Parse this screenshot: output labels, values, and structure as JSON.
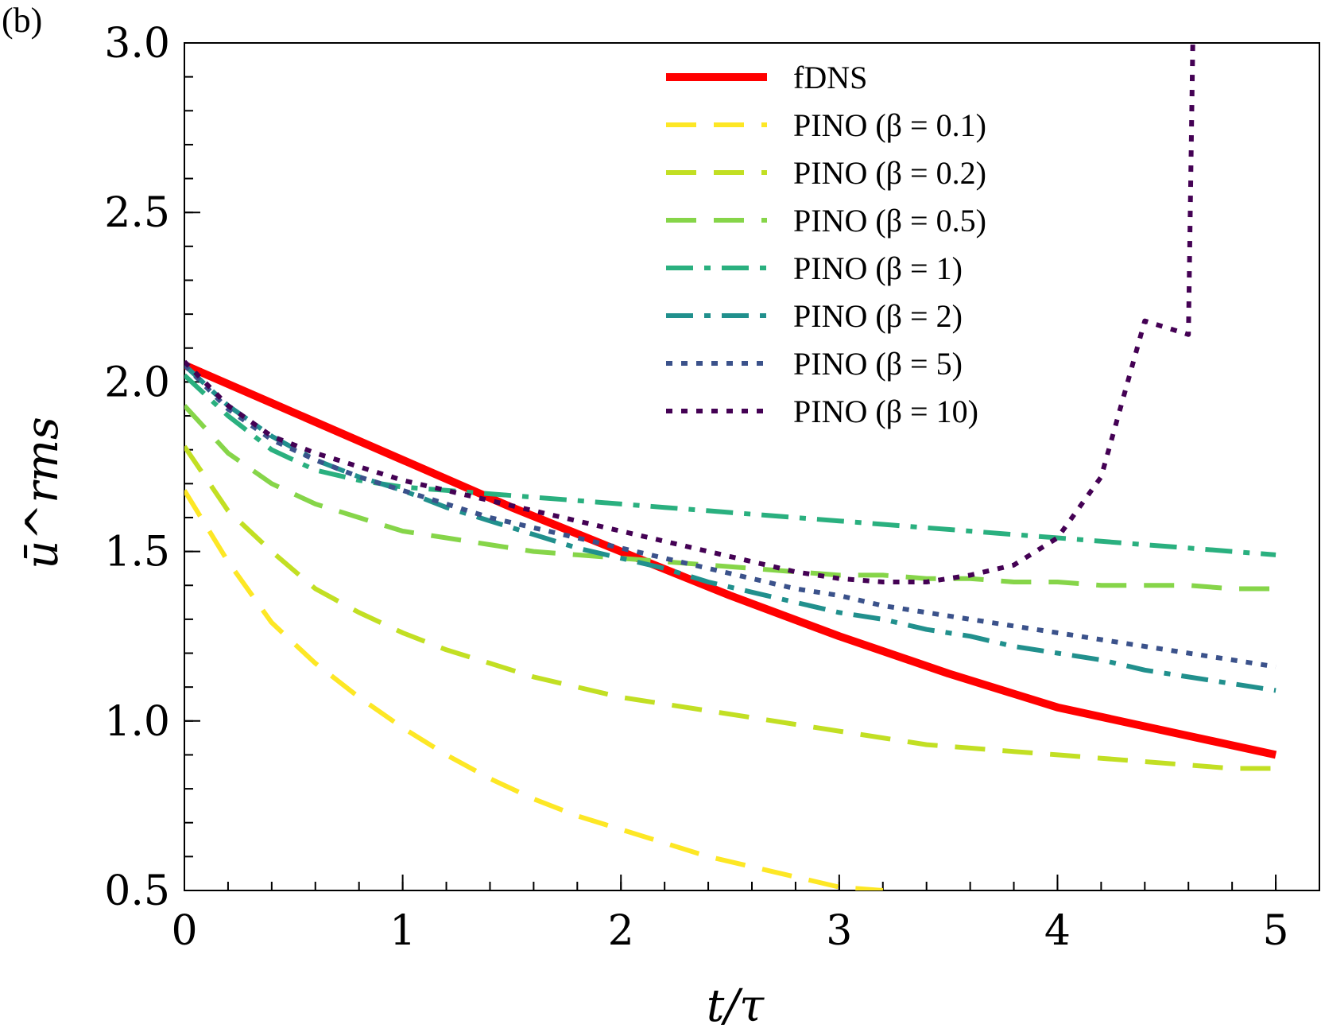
{
  "panel_label": "(b)",
  "chart_data": {
    "type": "line",
    "xlabel": "t/τ",
    "ylabel": "ū^rms",
    "xlim": [
      0,
      5.2
    ],
    "ylim": [
      0.5,
      3.0
    ],
    "xticks": [
      0,
      1,
      2,
      3,
      4,
      5
    ],
    "xtick_labels": [
      "0",
      "1",
      "2",
      "3",
      "4",
      "5"
    ],
    "yticks": [
      0.5,
      1.0,
      1.5,
      2.0,
      2.5,
      3.0
    ],
    "ytick_labels": [
      "0.5",
      "1.0",
      "1.5",
      "2.0",
      "2.5",
      "3.0"
    ],
    "grid": false,
    "legend_position": "top-right",
    "series": [
      {
        "name": "fDNS",
        "color": "#ff0000",
        "style": "solid",
        "x": [
          0,
          0.5,
          1.0,
          1.5,
          2.0,
          2.5,
          3.0,
          3.5,
          4.0,
          4.5,
          5.0
        ],
        "y": [
          2.05,
          1.91,
          1.77,
          1.63,
          1.5,
          1.37,
          1.25,
          1.14,
          1.04,
          0.97,
          0.9
        ]
      },
      {
        "name": "PINO (β = 0.1)",
        "color": "#fde725",
        "style": "dashed",
        "x": [
          0,
          0.2,
          0.4,
          0.6,
          0.8,
          1.0,
          1.2,
          1.4,
          1.6,
          1.8,
          2.0,
          2.2,
          2.4,
          2.6,
          2.8,
          3.0,
          3.2
        ],
        "y": [
          1.68,
          1.47,
          1.29,
          1.17,
          1.07,
          0.98,
          0.9,
          0.83,
          0.77,
          0.72,
          0.68,
          0.64,
          0.6,
          0.57,
          0.54,
          0.51,
          0.5
        ]
      },
      {
        "name": "PINO (β = 0.2)",
        "color": "#c2df23",
        "style": "dashed",
        "x": [
          0,
          0.2,
          0.4,
          0.6,
          0.8,
          1.0,
          1.2,
          1.4,
          1.6,
          1.8,
          2.0,
          2.2,
          2.4,
          2.6,
          2.8,
          3.0,
          3.2,
          3.4,
          3.6,
          3.8,
          4.0,
          4.2,
          4.4,
          4.6,
          4.8,
          5.0
        ],
        "y": [
          1.81,
          1.62,
          1.5,
          1.39,
          1.32,
          1.26,
          1.21,
          1.17,
          1.13,
          1.1,
          1.07,
          1.05,
          1.03,
          1.01,
          0.99,
          0.97,
          0.95,
          0.93,
          0.92,
          0.91,
          0.9,
          0.89,
          0.88,
          0.87,
          0.86,
          0.86
        ]
      },
      {
        "name": "PINO (β = 0.5)",
        "color": "#86d549",
        "style": "dashed",
        "x": [
          0,
          0.2,
          0.4,
          0.6,
          0.8,
          1.0,
          1.2,
          1.4,
          1.6,
          1.8,
          2.0,
          2.2,
          2.4,
          2.6,
          2.8,
          3.0,
          3.2,
          3.4,
          3.6,
          3.8,
          4.0,
          4.2,
          4.4,
          4.6,
          4.8,
          5.0
        ],
        "y": [
          1.93,
          1.79,
          1.7,
          1.64,
          1.6,
          1.56,
          1.54,
          1.52,
          1.5,
          1.49,
          1.48,
          1.47,
          1.46,
          1.45,
          1.44,
          1.43,
          1.43,
          1.42,
          1.42,
          1.41,
          1.41,
          1.4,
          1.4,
          1.4,
          1.39,
          1.39
        ]
      },
      {
        "name": "PINO (β = 1)",
        "color": "#2ab07f",
        "style": "dashdot",
        "x": [
          0,
          0.2,
          0.4,
          0.6,
          0.8,
          1.0,
          1.2,
          1.4,
          1.6,
          1.8,
          2.0,
          2.2,
          2.4,
          2.6,
          2.8,
          3.0,
          3.2,
          3.4,
          3.6,
          3.8,
          4.0,
          4.2,
          4.4,
          4.6,
          4.8,
          5.0
        ],
        "y": [
          2.02,
          1.9,
          1.8,
          1.74,
          1.71,
          1.69,
          1.68,
          1.67,
          1.66,
          1.65,
          1.64,
          1.63,
          1.62,
          1.61,
          1.6,
          1.59,
          1.58,
          1.57,
          1.56,
          1.55,
          1.54,
          1.53,
          1.52,
          1.51,
          1.5,
          1.49
        ]
      },
      {
        "name": "PINO (β = 2)",
        "color": "#21908d",
        "style": "dashdot",
        "x": [
          0,
          0.2,
          0.4,
          0.6,
          0.8,
          1.0,
          1.2,
          1.4,
          1.6,
          1.8,
          2.0,
          2.2,
          2.4,
          2.6,
          2.8,
          3.0,
          3.2,
          3.4,
          3.6,
          3.8,
          4.0,
          4.2,
          4.4,
          4.6,
          4.8,
          5.0
        ],
        "y": [
          2.05,
          1.93,
          1.84,
          1.77,
          1.72,
          1.68,
          1.63,
          1.59,
          1.55,
          1.51,
          1.48,
          1.45,
          1.41,
          1.38,
          1.35,
          1.32,
          1.3,
          1.27,
          1.25,
          1.22,
          1.2,
          1.18,
          1.15,
          1.13,
          1.11,
          1.09
        ]
      },
      {
        "name": "PINO (β = 5)",
        "color": "#3b528b",
        "style": "dotted",
        "x": [
          0,
          0.2,
          0.4,
          0.6,
          0.8,
          1.0,
          1.2,
          1.4,
          1.6,
          1.8,
          2.0,
          2.2,
          2.4,
          2.6,
          2.8,
          3.0,
          3.2,
          3.4,
          3.6,
          3.8,
          4.0,
          4.2,
          4.4,
          4.6,
          4.8,
          5.0
        ],
        "y": [
          2.05,
          1.92,
          1.83,
          1.77,
          1.72,
          1.68,
          1.64,
          1.6,
          1.57,
          1.54,
          1.51,
          1.48,
          1.45,
          1.42,
          1.39,
          1.37,
          1.34,
          1.32,
          1.3,
          1.28,
          1.26,
          1.24,
          1.22,
          1.2,
          1.18,
          1.16
        ]
      },
      {
        "name": "PINO (β = 10)",
        "color": "#440154",
        "style": "dotted",
        "x": [
          0,
          0.2,
          0.4,
          0.6,
          0.8,
          1.0,
          1.2,
          1.4,
          1.6,
          1.8,
          2.0,
          2.2,
          2.4,
          2.6,
          2.8,
          3.0,
          3.2,
          3.4,
          3.6,
          3.8,
          4.0,
          4.2,
          4.4,
          4.6,
          4.62
        ],
        "y": [
          2.06,
          1.93,
          1.84,
          1.79,
          1.75,
          1.71,
          1.68,
          1.65,
          1.62,
          1.59,
          1.56,
          1.53,
          1.5,
          1.47,
          1.44,
          1.42,
          1.41,
          1.41,
          1.43,
          1.46,
          1.54,
          1.72,
          2.18,
          2.14,
          3.0
        ]
      }
    ]
  }
}
